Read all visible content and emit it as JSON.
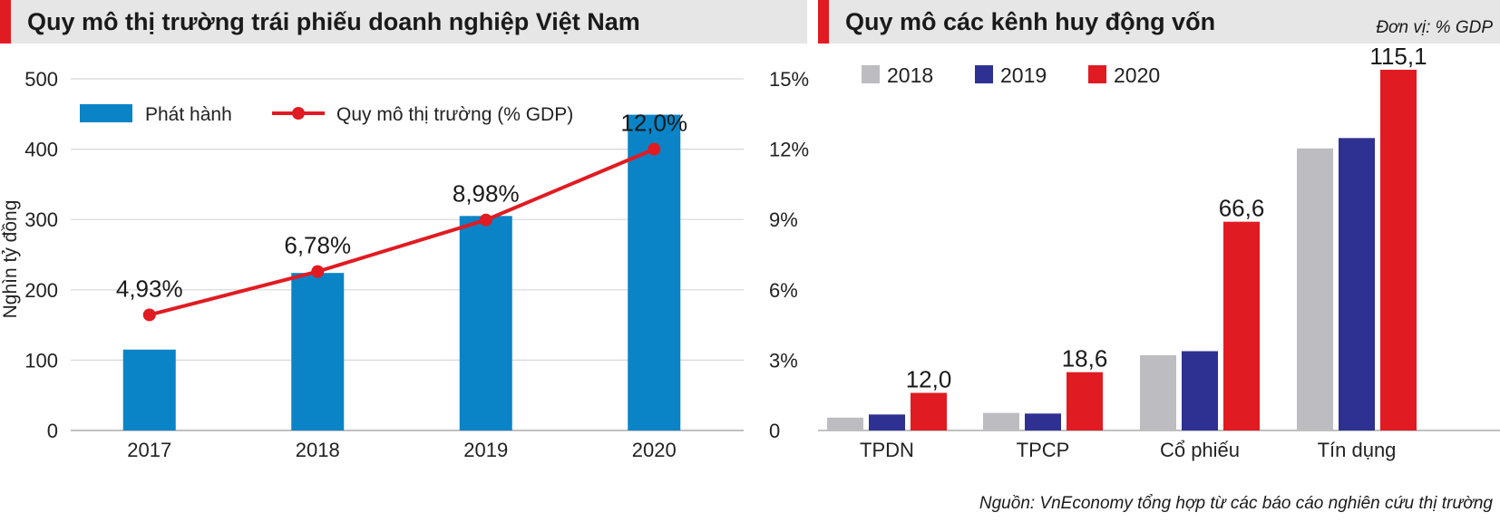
{
  "colors": {
    "accent": "#e11b22",
    "header_bg": "#e7e6e6",
    "bar_blue": "#0a84c6",
    "line_red": "#e11b22",
    "gray_2018": "#bdbdc1",
    "navy_2019": "#2e3192",
    "red_2020": "#e11b22"
  },
  "chart_data": [
    {
      "type": "bar",
      "title": "Quy mô thị trường trái phiếu doanh nghiệp Việt Nam",
      "ylabel": "Nghìn tỷ đồng",
      "categories": [
        "2017",
        "2018",
        "2019",
        "2020"
      ],
      "ylim": [
        0,
        500
      ],
      "yticks": [
        0,
        100,
        200,
        300,
        400,
        500
      ],
      "y2lim": [
        0,
        15
      ],
      "y2ticks": [
        "0",
        "3%",
        "6%",
        "9%",
        "12%",
        "15%"
      ],
      "grid": true,
      "legend_position": "top-left",
      "series": [
        {
          "name": "Phát hành",
          "type": "bar",
          "values": [
            115,
            224,
            305,
            449
          ]
        },
        {
          "name": "Quy mô thị trường (% GDP)",
          "type": "line",
          "axis": "right",
          "values": [
            4.93,
            6.78,
            8.98,
            12.0
          ],
          "labels": [
            "4,93%",
            "6,78%",
            "8,98%",
            "12,0%"
          ]
        }
      ]
    },
    {
      "type": "bar",
      "title": "Quy mô các kênh huy động vốn",
      "unit": "Đơn vị: % GDP",
      "categories": [
        "TPDN",
        "TPCP",
        "Cổ phiếu",
        "Tín dụng"
      ],
      "ylim": [
        0,
        120
      ],
      "legend_position": "top-left",
      "series": [
        {
          "name": "2018",
          "values": [
            4.1,
            5.6,
            24.0,
            90.0
          ]
        },
        {
          "name": "2019",
          "values": [
            5.1,
            5.4,
            25.3,
            93.3
          ]
        },
        {
          "name": "2020",
          "values": [
            12.0,
            18.6,
            66.6,
            115.1
          ],
          "labels": [
            "12,0",
            "18,6",
            "66,6",
            "115,1"
          ]
        }
      ]
    }
  ],
  "source": "Nguồn: VnEconomy tổng hợp từ các báo cáo nghiên cứu thị trường"
}
